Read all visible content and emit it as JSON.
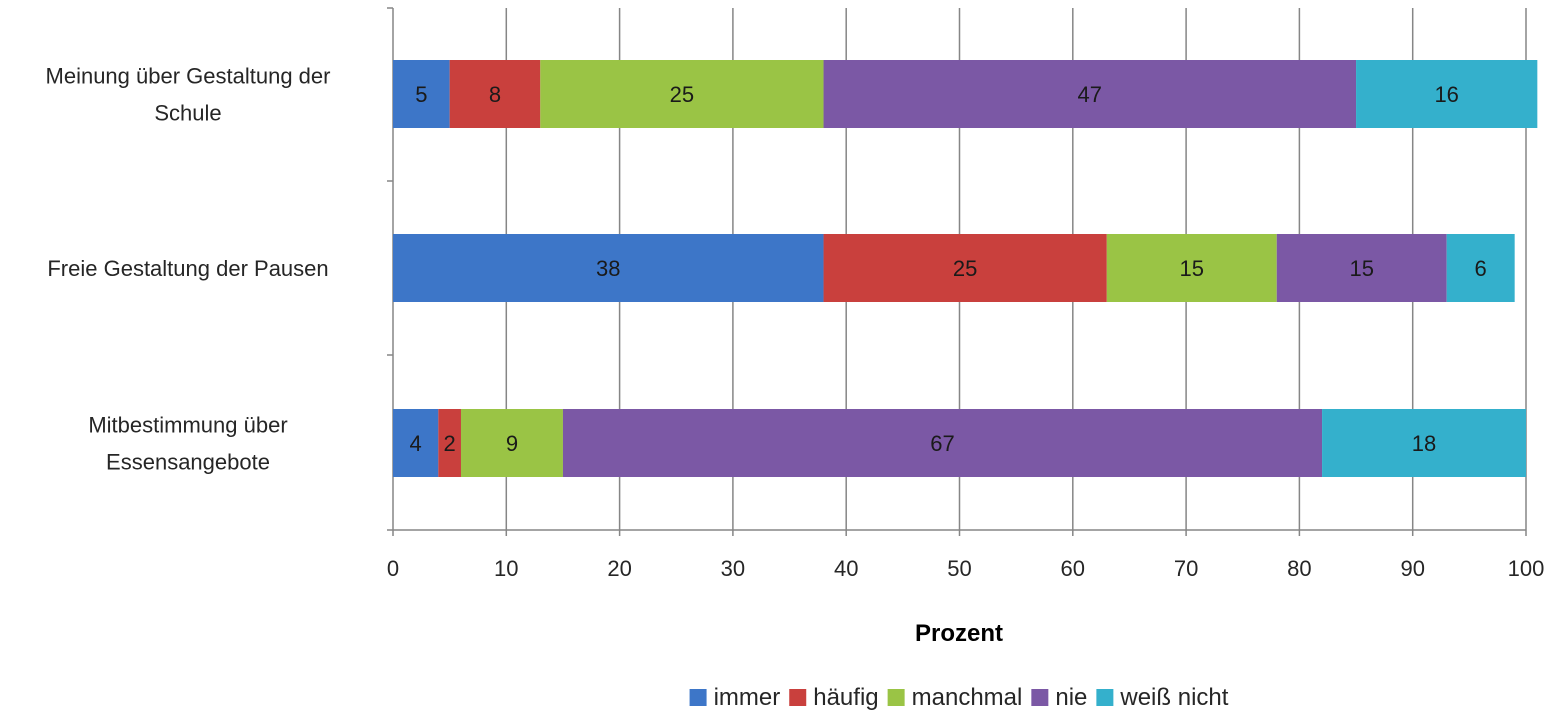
{
  "chart_data": {
    "type": "bar",
    "orientation": "horizontal",
    "stacked": true,
    "categories": [
      [
        "Meinung über Gestaltung der",
        "Schule"
      ],
      [
        "Freie Gestaltung der Pausen"
      ],
      [
        "Mitbestimmung über",
        "Essensangebote"
      ]
    ],
    "series": [
      {
        "name": "immer",
        "color": "#3d76c8",
        "values": [
          5,
          38,
          4
        ]
      },
      {
        "name": "häufig",
        "color": "#c9403d",
        "values": [
          8,
          25,
          2
        ]
      },
      {
        "name": "manchmal",
        "color": "#9ac445",
        "values": [
          25,
          15,
          9
        ]
      },
      {
        "name": "nie",
        "color": "#7b58a5",
        "values": [
          47,
          15,
          67
        ]
      },
      {
        "name": "weiß nicht",
        "color": "#34b0cc",
        "values": [
          16,
          6,
          18
        ]
      }
    ],
    "xlim": [
      0,
      100
    ],
    "xticks": [
      0,
      10,
      20,
      30,
      40,
      50,
      60,
      70,
      80,
      90,
      100
    ],
    "xlabel": "Prozent",
    "ylabel": "",
    "title": "",
    "grid": "vertical",
    "legend_position": "bottom",
    "data_labels": true
  }
}
